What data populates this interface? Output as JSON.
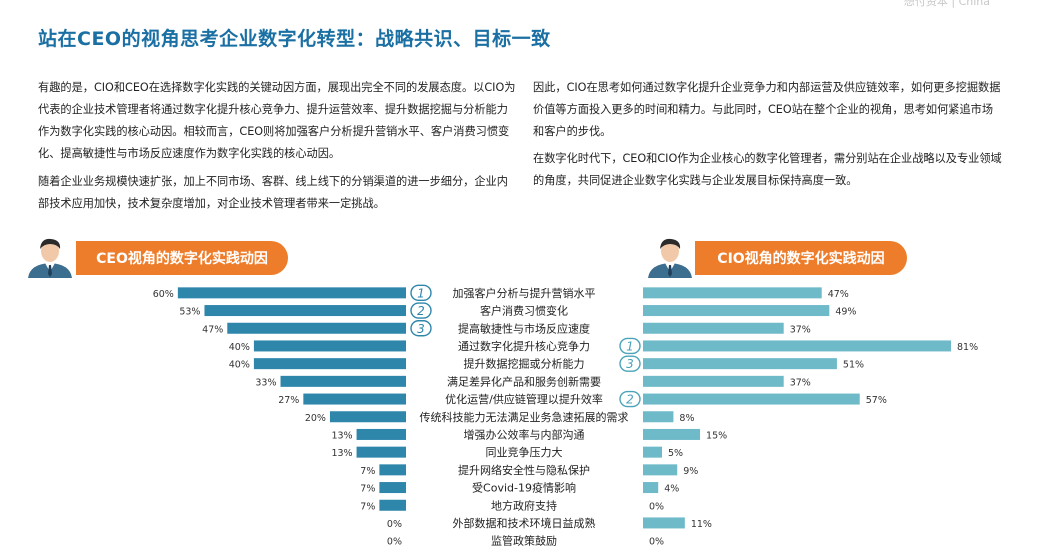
{
  "watermark": "想付资本 | China",
  "title": "站在CEO的视角思考企业数字化转型：战略共识、目标一致",
  "paragraphs": {
    "left_1": "有趣的是，CIO和CEO在选择数字化实践的关键动因方面，展现出完全不同的发展态度。以CIO为代表的企业技术管理者将通过数字化提升核心竞争力、提升运营效率、提升数据挖掘与分析能力作为数字化实践的核心动因。相较而言，CEO则将加强客户分析提升营销水平、客户消费习惯变化、提高敏捷性与市场反应速度作为数字化实践的核心动因。",
    "left_2": "随着企业业务规模快速扩张，加上不同市场、客群、线上线下的分销渠道的进一步细分，企业内部技术应用加快，技术复杂度增加，对企业技术管理者带来一定挑战。",
    "right_1": "因此，CIO在思考如何通过数字化提升企业竞争力和内部运营及供应链效率，如何更多挖掘数据价值等方面投入更多的时间和精力。与此同时，CEO站在整个企业的视角，思考如何紧追市场和客户的步伐。",
    "right_2": "在数字化时代下，CEO和CIO作为企业核心的数字化管理者，需分别站在企业战略以及专业领域的角度，共同促进企业数字化实践与企业发展目标保持高度一致。"
  },
  "badges": {
    "ceo": "CEO视角的数字化实践动因",
    "cio": "CIO视角的数字化实践动因"
  },
  "chart_data": {
    "type": "bar",
    "layout": "butterfly",
    "categories": [
      "加强客户分析与提升营销水平",
      "客户消费习惯变化",
      "提高敏捷性与市场反应速度",
      "通过数字化提升核心竞争力",
      "提升数据挖掘或分析能力",
      "满足差异化产品和服务创新需要",
      "优化运营/供应链管理以提升效率",
      "传统科技能力无法满足业务急速拓展的需求",
      "增强办公效率与内部沟通",
      "同业竞争压力大",
      "提升网络安全性与隐私保护",
      "受Covid-19疫情影响",
      "地方政府支持",
      "外部数据和技术环境日益成熟",
      "监管政策鼓励"
    ],
    "series": [
      {
        "name": "CEO",
        "values": [
          60,
          53,
          47,
          40,
          40,
          33,
          27,
          20,
          13,
          13,
          7,
          7,
          7,
          0,
          0
        ],
        "labels": [
          "60%",
          "53%",
          "47%",
          "40%",
          "40%",
          "33%",
          "27%",
          "20%",
          "13%",
          "13%",
          "7%",
          "7%",
          "7%",
          "0%",
          "0%"
        ],
        "color": "#2e86ab",
        "ranks": [
          {
            "index": 0,
            "label": "1"
          },
          {
            "index": 1,
            "label": "2"
          },
          {
            "index": 2,
            "label": "3"
          }
        ]
      },
      {
        "name": "CIO",
        "values": [
          47,
          49,
          37,
          81,
          51,
          37,
          57,
          8,
          15,
          5,
          9,
          4,
          0,
          11,
          0
        ],
        "labels": [
          "47%",
          "49%",
          "37%",
          "81%",
          "51%",
          "37%",
          "57%",
          "8%",
          "15%",
          "5%",
          "9%",
          "4%",
          "0%",
          "11%",
          "0%"
        ],
        "color": "#6ebac9",
        "ranks": [
          {
            "index": 3,
            "label": "1"
          },
          {
            "index": 4,
            "label": "3"
          },
          {
            "index": 6,
            "label": "2"
          }
        ]
      }
    ],
    "xlim": [
      0,
      81
    ]
  }
}
